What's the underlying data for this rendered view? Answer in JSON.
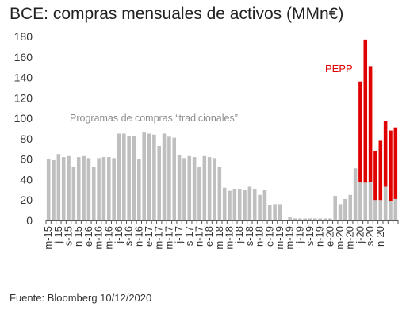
{
  "title": "BCE: compras mensuales de activos (MMn€)",
  "source": "Fuente: Bloomberg  10/12/2020",
  "colors": {
    "traditional": "#bfbfbf",
    "pepp": "#e00000",
    "label_gray": "#8c8c8c",
    "axis": "#555555"
  },
  "chart_data": {
    "type": "bar",
    "stacked": true,
    "ylim": [
      0,
      180
    ],
    "yticks": [
      0,
      20,
      40,
      60,
      80,
      100,
      120,
      140,
      160,
      180
    ],
    "grid": false,
    "xticks": [
      "m-15",
      "j-15",
      "s-15",
      "n-15",
      "e-16",
      "m-16",
      "m-16",
      "j-16",
      "s-16",
      "n-16",
      "e-17",
      "m-17",
      "m-17",
      "j-17",
      "s-17",
      "n-17",
      "e-18",
      "m-18",
      "m-18",
      "j-18",
      "s-18",
      "n-18",
      "e-19",
      "m-19",
      "m-19",
      "j-19",
      "s-19",
      "n-19",
      "e-20",
      "m-20",
      "m-20",
      "j-20",
      "s-20",
      "n-20"
    ],
    "annotations": [
      {
        "text": "Programas de compras “tradicionales”",
        "series": "traditional"
      },
      {
        "text": "PEPP",
        "series": "pepp"
      }
    ],
    "series": [
      {
        "key": "traditional",
        "values": [
          60,
          59,
          65,
          62,
          63,
          52,
          62,
          63,
          61,
          52,
          61,
          62,
          62,
          61,
          85,
          85,
          83,
          83,
          60,
          86,
          85,
          84,
          73,
          85,
          82,
          81,
          64,
          61,
          63,
          62,
          52,
          63,
          62,
          61,
          52,
          32,
          29,
          31,
          31,
          30,
          33,
          31,
          25,
          30,
          15,
          16,
          16,
          0,
          3,
          2,
          2,
          2,
          2,
          2,
          2,
          2,
          2,
          24,
          16,
          21,
          25,
          51,
          38,
          37,
          38,
          20,
          20,
          33,
          19,
          21
        ]
      },
      {
        "key": "pepp",
        "values": [
          0,
          0,
          0,
          0,
          0,
          0,
          0,
          0,
          0,
          0,
          0,
          0,
          0,
          0,
          0,
          0,
          0,
          0,
          0,
          0,
          0,
          0,
          0,
          0,
          0,
          0,
          0,
          0,
          0,
          0,
          0,
          0,
          0,
          0,
          0,
          0,
          0,
          0,
          0,
          0,
          0,
          0,
          0,
          0,
          0,
          0,
          0,
          0,
          0,
          0,
          0,
          0,
          0,
          0,
          0,
          0,
          0,
          0,
          0,
          0,
          0,
          0,
          98,
          140,
          113,
          48,
          58,
          64,
          69,
          70
        ]
      }
    ]
  }
}
